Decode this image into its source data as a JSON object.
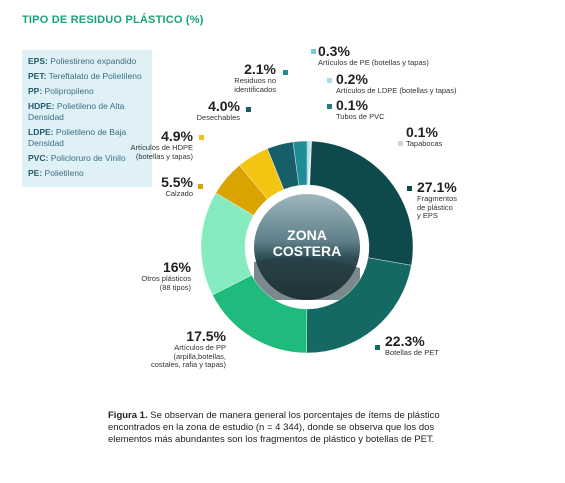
{
  "chart_data": {
    "type": "pie",
    "donut": true,
    "title": "TIPO DE RESIDUO PLÁSTICO (%)",
    "center_label": "ZONA\nCOSTERA",
    "categories": [
      "Artículos de PE (botellas y tapas)",
      "Artículos de LDPE (botellas y tapas)",
      "Tubos de PVC",
      "Tapabocas",
      "Fragmentos\nde plástico\ny EPS",
      "Botellas de PET",
      "Artículos de PP\n(arpilla,botellas,\ncostales, rafia y tapas)",
      "Otros plásticos\n(88 tipos)",
      "Calzado",
      "Artículos de HDPE\n(botellas y tapas)",
      "Desechables",
      "Residuos no\nidentificados"
    ],
    "values": [
      0.3,
      0.2,
      0.1,
      0.1,
      27.1,
      22.3,
      17.5,
      16,
      5.5,
      4.9,
      4.0,
      2.1
    ],
    "value_labels": [
      "0.3%",
      "0.2%",
      "0.1%",
      "0.1%",
      "27.1%",
      "22.3%",
      "17.5%",
      "16%",
      "5.5%",
      "4.9%",
      "4.0%",
      "2.1%"
    ],
    "colors": [
      "#7ccbd4",
      "#a9dde3",
      "#2d7a80",
      "#d4d4d4",
      "#0e4a4c",
      "#146a62",
      "#1fbb7c",
      "#86ebbe",
      "#d9a300",
      "#f3c512",
      "#175e69",
      "#1f8d98"
    ],
    "legend_items": [
      {
        "abbr": "EPS:",
        "desc": "Poliestireno expandido"
      },
      {
        "abbr": "PET:",
        "desc": "Tereftalato de Polietileno"
      },
      {
        "abbr": "PP:",
        "desc": "Polipropileno"
      },
      {
        "abbr": "HDPE:",
        "desc": "Polietileno de Alta Densidad"
      },
      {
        "abbr": "LDPE:",
        "desc": "Polietileno de Baja Densidad"
      },
      {
        "abbr": "PVC:",
        "desc": "Policloruro de Vinilo"
      },
      {
        "abbr": "PE:",
        "desc": "Polietileno"
      }
    ],
    "caption": {
      "lead": "Figura 1.",
      "text": "Se observan de manera general los porcentajes de ítems de plástico encontrados en la zona de estudio (n = 4 344), donde se observa que los dos elementos más abundantes son los fragmentos de plástico y botellas de PET."
    }
  }
}
